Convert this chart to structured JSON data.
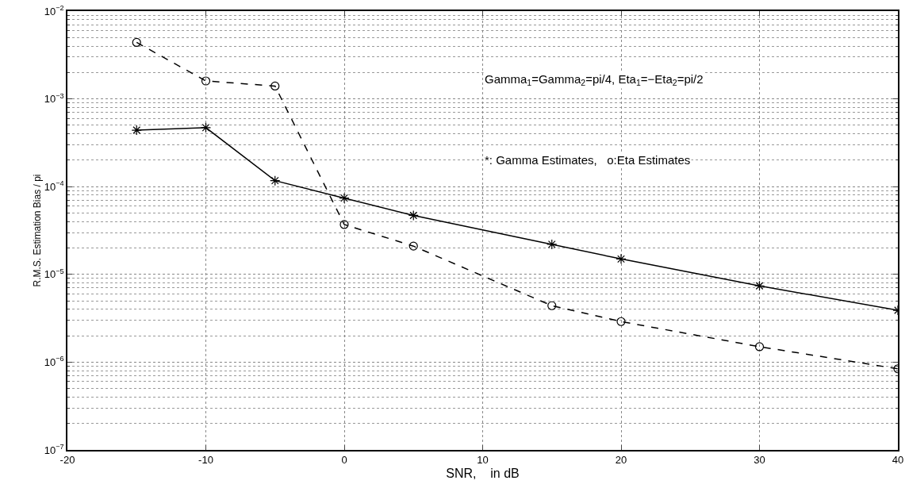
{
  "chart_data": {
    "type": "line",
    "xlabel": "SNR,    in dB",
    "ylabel": "R.M.S. Estimation Bias / pi",
    "x": [
      -15,
      -10,
      -5,
      0,
      5,
      15,
      20,
      30,
      40
    ],
    "series": [
      {
        "color": "#000000",
        "marker": "cross",
        "line_style": "solid",
        "values": [
          0.00044,
          0.00047,
          0.000117,
          7.4e-05,
          4.7e-05,
          2.2e-05,
          1.5e-05,
          7.4e-06,
          3.9e-06
        ]
      },
      {
        "color": "#000000",
        "marker": "circle",
        "line_style": "dashed",
        "values": [
          0.0044,
          0.0016,
          0.0014,
          3.7e-05,
          2.1e-05,
          4.4e-06,
          2.9e-06,
          1.5e-06,
          8.4e-07
        ]
      }
    ],
    "annotations": [
      "Gamma$_{1}$=Gamma$_{2}$=pi/4, Eta$_{1}$=−Eta$_{2}$=pi/2",
      "*: Gamma Estimates,   o:Eta Estimates"
    ],
    "log": "y",
    "grid": true,
    "xlim": [
      -20,
      40
    ],
    "xticks": [
      -20,
      -10,
      0,
      10,
      20,
      30,
      40
    ],
    "ylim": [
      1e-07,
      0.01
    ],
    "yticks": [
      {
        "value": 1e-07,
        "label": "10$^{−7}$"
      },
      {
        "value": 1e-06,
        "label": "10$^{−6}$"
      },
      {
        "value": 1e-05,
        "label": "10$^{−5}$"
      },
      {
        "value": 0.0001,
        "label": "10$^{−4}$"
      },
      {
        "value": 0.001,
        "label": "10$^{−3}$"
      },
      {
        "value": 0.01,
        "label": "10$^{−2}$"
      }
    ]
  }
}
